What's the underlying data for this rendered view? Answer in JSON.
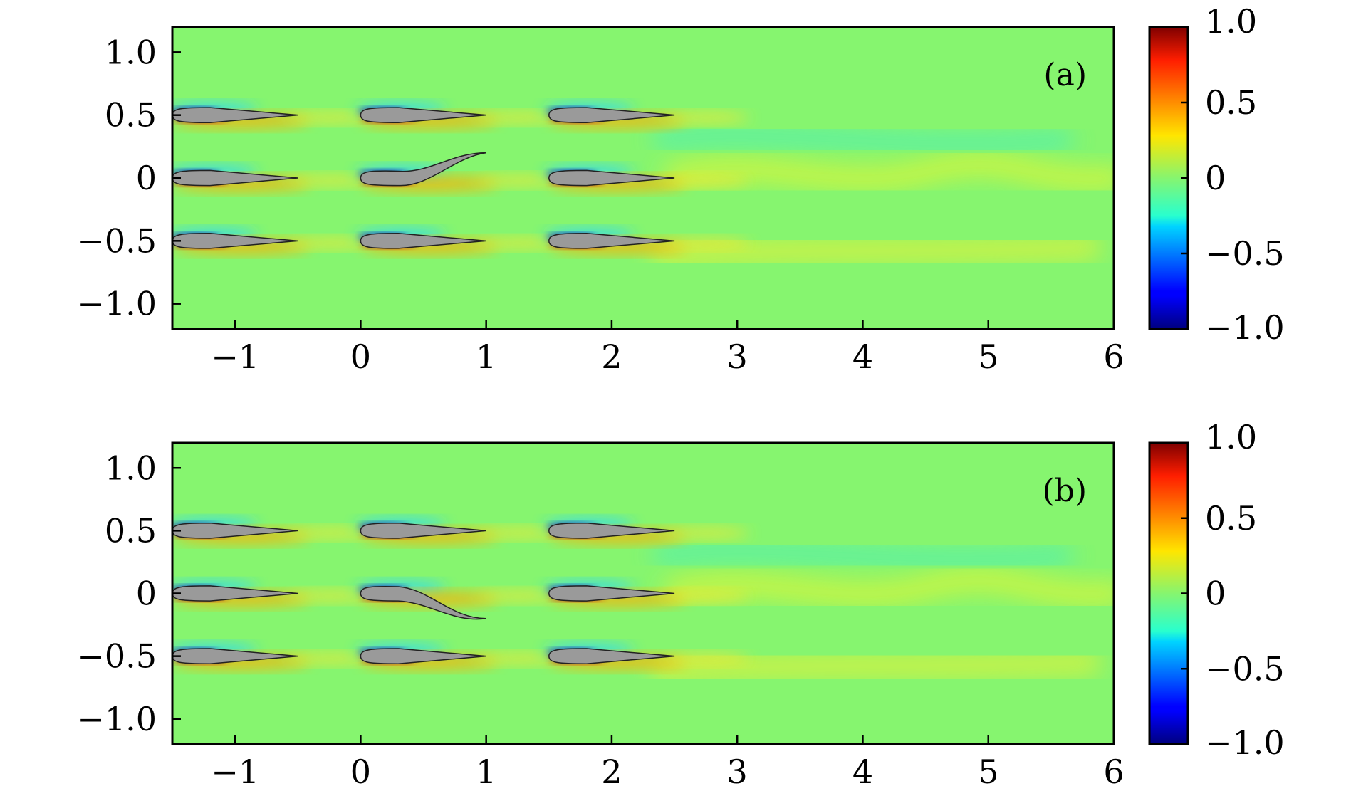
{
  "chart_data": [
    {
      "type": "heatmap",
      "panel_label": "(a)",
      "xlim": [
        -1.5,
        6
      ],
      "ylim": [
        -1.2,
        1.2
      ],
      "x_ticks": [
        -1,
        0,
        1,
        2,
        3,
        4,
        5,
        6
      ],
      "x_tick_labels": [
        "−1",
        "0",
        "1",
        "2",
        "3",
        "4",
        "5",
        "6"
      ],
      "y_ticks": [
        1.0,
        0.5,
        0,
        -0.5,
        -1.0
      ],
      "y_tick_labels": [
        "1.0",
        "0.5",
        "0",
        "−0.5",
        "−1.0"
      ],
      "colorbar": {
        "range": [
          -1.0,
          1.0
        ],
        "ticks": [
          1.0,
          0.5,
          0,
          -0.5,
          -1.0
        ],
        "tick_labels": [
          "1.0",
          "0.5",
          "0",
          "−0.5",
          "−1.0"
        ],
        "colormap": "jet"
      },
      "foils": [
        {
          "x": -1.5,
          "y": 0.5,
          "chord": 1.0,
          "deflection": 0
        },
        {
          "x": 0.0,
          "y": 0.5,
          "chord": 1.0,
          "deflection": 0
        },
        {
          "x": 1.5,
          "y": 0.5,
          "chord": 1.0,
          "deflection": 0
        },
        {
          "x": -1.5,
          "y": 0.0,
          "chord": 1.0,
          "deflection": 0
        },
        {
          "x": 0.0,
          "y": 0.0,
          "chord": 1.0,
          "deflection": 0.2
        },
        {
          "x": 1.5,
          "y": 0.0,
          "chord": 1.0,
          "deflection": 0
        },
        {
          "x": -1.5,
          "y": -0.5,
          "chord": 1.0,
          "deflection": 0
        },
        {
          "x": 0.0,
          "y": -0.5,
          "chord": 1.0,
          "deflection": 0
        },
        {
          "x": 1.5,
          "y": -0.5,
          "chord": 1.0,
          "deflection": 0
        }
      ]
    },
    {
      "type": "heatmap",
      "panel_label": "(b)",
      "xlim": [
        -1.5,
        6
      ],
      "ylim": [
        -1.2,
        1.2
      ],
      "x_ticks": [
        -1,
        0,
        1,
        2,
        3,
        4,
        5,
        6
      ],
      "x_tick_labels": [
        "−1",
        "0",
        "1",
        "2",
        "3",
        "4",
        "5",
        "6"
      ],
      "y_ticks": [
        1.0,
        0.5,
        0,
        -0.5,
        -1.0
      ],
      "y_tick_labels": [
        "1.0",
        "0.5",
        "0",
        "−0.5",
        "−1.0"
      ],
      "colorbar": {
        "range": [
          -1.0,
          1.0
        ],
        "ticks": [
          1.0,
          0.5,
          0,
          -0.5,
          -1.0
        ],
        "tick_labels": [
          "1.0",
          "0.5",
          "0",
          "−0.5",
          "−1.0"
        ],
        "colormap": "jet"
      },
      "foils": [
        {
          "x": -1.5,
          "y": 0.5,
          "chord": 1.0,
          "deflection": 0
        },
        {
          "x": 0.0,
          "y": 0.5,
          "chord": 1.0,
          "deflection": 0
        },
        {
          "x": 1.5,
          "y": 0.5,
          "chord": 1.0,
          "deflection": 0
        },
        {
          "x": -1.5,
          "y": 0.0,
          "chord": 1.0,
          "deflection": 0
        },
        {
          "x": 0.0,
          "y": 0.0,
          "chord": 1.0,
          "deflection": -0.2
        },
        {
          "x": 1.5,
          "y": 0.0,
          "chord": 1.0,
          "deflection": 0
        },
        {
          "x": -1.5,
          "y": -0.5,
          "chord": 1.0,
          "deflection": 0
        },
        {
          "x": 0.0,
          "y": -0.5,
          "chord": 1.0,
          "deflection": 0
        },
        {
          "x": 1.5,
          "y": -0.5,
          "chord": 1.0,
          "deflection": 0
        }
      ]
    }
  ],
  "colors": {
    "background_field": "#86f56f",
    "foil_fill": "#9a9a9a",
    "axis": "#000000"
  }
}
